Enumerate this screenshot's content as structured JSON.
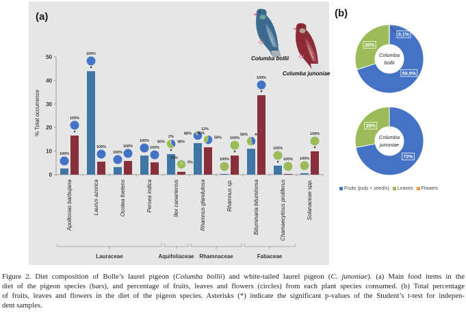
{
  "figure": {
    "panel_a_label": "(a)",
    "panel_b_label": "(b)",
    "illustrations": [
      {
        "name": "Columba bollii"
      },
      {
        "name": "Columba junoniae"
      }
    ]
  },
  "chart_data": [
    {
      "type": "bar",
      "title": "(a)",
      "xlabel": "",
      "ylabel": "% Total occurrence",
      "ylim": [
        0,
        50
      ],
      "yticks": [
        0,
        10,
        20,
        30,
        40,
        50
      ],
      "grid": false,
      "significance_marker": "*",
      "categories": [
        "Apollonias barbujana",
        "Laurus azorica",
        "Ocotea foetens",
        "Persea indica",
        "Ilex canariensis",
        "Rhamnus glandulosa",
        "Rhamnus sp.",
        "Bituminaria bituminosa",
        "Chamaecytisus proliferus",
        "Solanaceae spp."
      ],
      "families": [
        {
          "name": "Lauraceae",
          "first": 0,
          "last": 3
        },
        {
          "name": "Aquifoliaceae",
          "first": 4,
          "last": 4
        },
        {
          "name": "Rhamnaceae",
          "first": 5,
          "last": 6
        },
        {
          "name": "Fabaceae",
          "first": 7,
          "last": 8
        }
      ],
      "composition_colors": {
        "fruits": "#4472c4",
        "leaves": "#9bbb59",
        "flowers": "#f79646"
      },
      "series": [
        {
          "name": "Columba bollii",
          "color": "#3f76a4",
          "values": [
            2.6,
            43.9,
            3.2,
            8.1,
            8.7,
            13.4,
            0.3,
            11.0,
            3.8,
            0.6
          ],
          "composition": [
            {
              "fruits": 100,
              "leaves": 0,
              "flowers": 0,
              "significant": false,
              "labels": [
                {
                  "text": "100%",
                  "pos": "top"
                }
              ]
            },
            {
              "fruits": 100,
              "leaves": 0,
              "flowers": 0,
              "significant": true,
              "labels": [
                {
                  "text": "100%",
                  "pos": "top"
                }
              ]
            },
            {
              "fruits": 100,
              "leaves": 0,
              "flowers": 0,
              "significant": false,
              "labels": [
                {
                  "text": "100%",
                  "pos": "top"
                }
              ]
            },
            {
              "fruits": 100,
              "leaves": 0,
              "flowers": 0,
              "significant": false,
              "labels": [
                {
                  "text": "100%",
                  "pos": "top"
                }
              ]
            },
            {
              "fruits": 38,
              "leaves": 60,
              "flowers": 2,
              "significant": true,
              "labels": [
                {
                  "text": "60%",
                  "pos": "left"
                },
                {
                  "text": "2%",
                  "pos": "top"
                },
                {
                  "text": "38%",
                  "pos": "right"
                }
              ]
            },
            {
              "fruits": 88,
              "leaves": 12,
              "flowers": 0,
              "significant": false,
              "labels": [
                {
                  "text": "88%",
                  "pos": "left"
                },
                {
                  "text": "12%",
                  "pos": "top-right"
                }
              ]
            },
            {
              "fruits": 0,
              "leaves": 100,
              "flowers": 0,
              "significant": false,
              "labels": [
                {
                  "text": "100%",
                  "pos": "top"
                }
              ]
            },
            {
              "fruits": 44,
              "leaves": 56,
              "flowers": 0,
              "significant": false,
              "labels": [
                {
                  "text": "56%",
                  "pos": "top-left"
                },
                {
                  "text": "44%",
                  "pos": "top-right"
                }
              ]
            },
            {
              "fruits": 0,
              "leaves": 100,
              "flowers": 0,
              "significant": true,
              "labels": [
                {
                  "text": "100%",
                  "pos": "top"
                }
              ]
            },
            {
              "fruits": 0,
              "leaves": 100,
              "flowers": 0,
              "significant": false,
              "labels": [
                {
                  "text": "100%",
                  "pos": "top"
                }
              ]
            }
          ]
        },
        {
          "name": "Columba junoniae",
          "color": "#87303c",
          "values": [
            16.6,
            5.5,
            5.8,
            5.2,
            1.2,
            11.6,
            8.1,
            33.7,
            0.3,
            9.9
          ],
          "composition": [
            {
              "fruits": 100,
              "leaves": 0,
              "flowers": 0,
              "significant": true,
              "labels": [
                {
                  "text": "100%",
                  "pos": "top"
                }
              ]
            },
            {
              "fruits": 100,
              "leaves": 0,
              "flowers": 0,
              "significant": false,
              "labels": [
                {
                  "text": "100%",
                  "pos": "top"
                }
              ]
            },
            {
              "fruits": 100,
              "leaves": 0,
              "flowers": 0,
              "significant": false,
              "labels": [
                {
                  "text": "100%",
                  "pos": "top"
                }
              ]
            },
            {
              "fruits": 100,
              "leaves": 0,
              "flowers": 0,
              "significant": false,
              "labels": [
                {
                  "text": "100%",
                  "pos": "top"
                }
              ]
            },
            {
              "fruits": 5,
              "leaves": 95,
              "flowers": 0,
              "significant": false,
              "labels": [
                {
                  "text": "95%",
                  "pos": "top-left"
                },
                {
                  "text": "5%",
                  "pos": "right"
                }
              ]
            },
            {
              "fruits": 59,
              "leaves": 41,
              "flowers": 0,
              "significant": false,
              "labels": [
                {
                  "text": "41%",
                  "pos": "top-left"
                },
                {
                  "text": "59%",
                  "pos": "right"
                }
              ]
            },
            {
              "fruits": 0,
              "leaves": 100,
              "flowers": 0,
              "significant": true,
              "labels": [
                {
                  "text": "100%",
                  "pos": "top"
                }
              ]
            },
            {
              "fruits": 100,
              "leaves": 0,
              "flowers": 0,
              "significant": true,
              "labels": [
                {
                  "text": "100%",
                  "pos": "top"
                }
              ]
            },
            {
              "fruits": 0,
              "leaves": 100,
              "flowers": 0,
              "significant": false,
              "labels": [
                {
                  "text": "100%",
                  "pos": "top"
                }
              ]
            },
            {
              "fruits": 0,
              "leaves": 100,
              "flowers": 0,
              "significant": true,
              "labels": [
                {
                  "text": "100%",
                  "pos": "top"
                }
              ]
            }
          ]
        }
      ]
    },
    {
      "type": "pie",
      "donut": true,
      "title": "(b)",
      "center_label": [
        "Columba",
        "bollii"
      ],
      "slices": [
        {
          "name": "Fruits (pulp + seed/s)",
          "value": 69.9,
          "label": "69,9%",
          "color": "#4472c4"
        },
        {
          "name": "Leaves",
          "value": 30,
          "label": "30%",
          "color": "#9bbb59"
        },
        {
          "name": "Flowers",
          "value": 0.1,
          "label": "0,1%",
          "color": "#f79646"
        }
      ]
    },
    {
      "type": "pie",
      "donut": true,
      "title": "(b)",
      "center_label": [
        "Columba",
        "junoniae"
      ],
      "slices": [
        {
          "name": "Fruits (pulp + seed/s)",
          "value": 72,
          "label": "72%",
          "color": "#4472c4"
        },
        {
          "name": "Leaves",
          "value": 28,
          "label": "28%",
          "color": "#9bbb59"
        },
        {
          "name": "Flowers",
          "value": 0,
          "label": "",
          "color": "#f79646"
        }
      ]
    }
  ],
  "legend": {
    "placement": "bottom",
    "items": [
      {
        "label": "Fruits (pulp + seed/s)",
        "color": "#4472c4"
      },
      {
        "label": "Leaves",
        "color": "#9bbb59"
      },
      {
        "label": "Flowers",
        "color": "#f79646"
      }
    ]
  },
  "caption": {
    "lines": [
      [
        {
          "text": "Figure 2. Diet composition of Bolle’s laurel pigeon (",
          "italic": false
        },
        {
          "text": "Columba bollii",
          "italic": true
        },
        {
          "text": ") and white-tailed laurel pigeon (",
          "italic": false
        },
        {
          "text": "C. junoniae",
          "italic": true
        },
        {
          "text": "). (a) Main food items in the",
          "italic": false
        }
      ],
      [
        {
          "text": "diet of the pigeon species (bars), and percentage of fruits, leaves and flowers (circles) from each plant species consumed. (b) Total percentage",
          "italic": false
        }
      ],
      [
        {
          "text": "of fruits, leaves and flowers in the diet of the pigeon species. Asterisks (*) indicate the significant p-values of the Student’s t-test for indepen-",
          "italic": false
        }
      ],
      [
        {
          "text": "dent samples.",
          "italic": false
        }
      ]
    ]
  }
}
